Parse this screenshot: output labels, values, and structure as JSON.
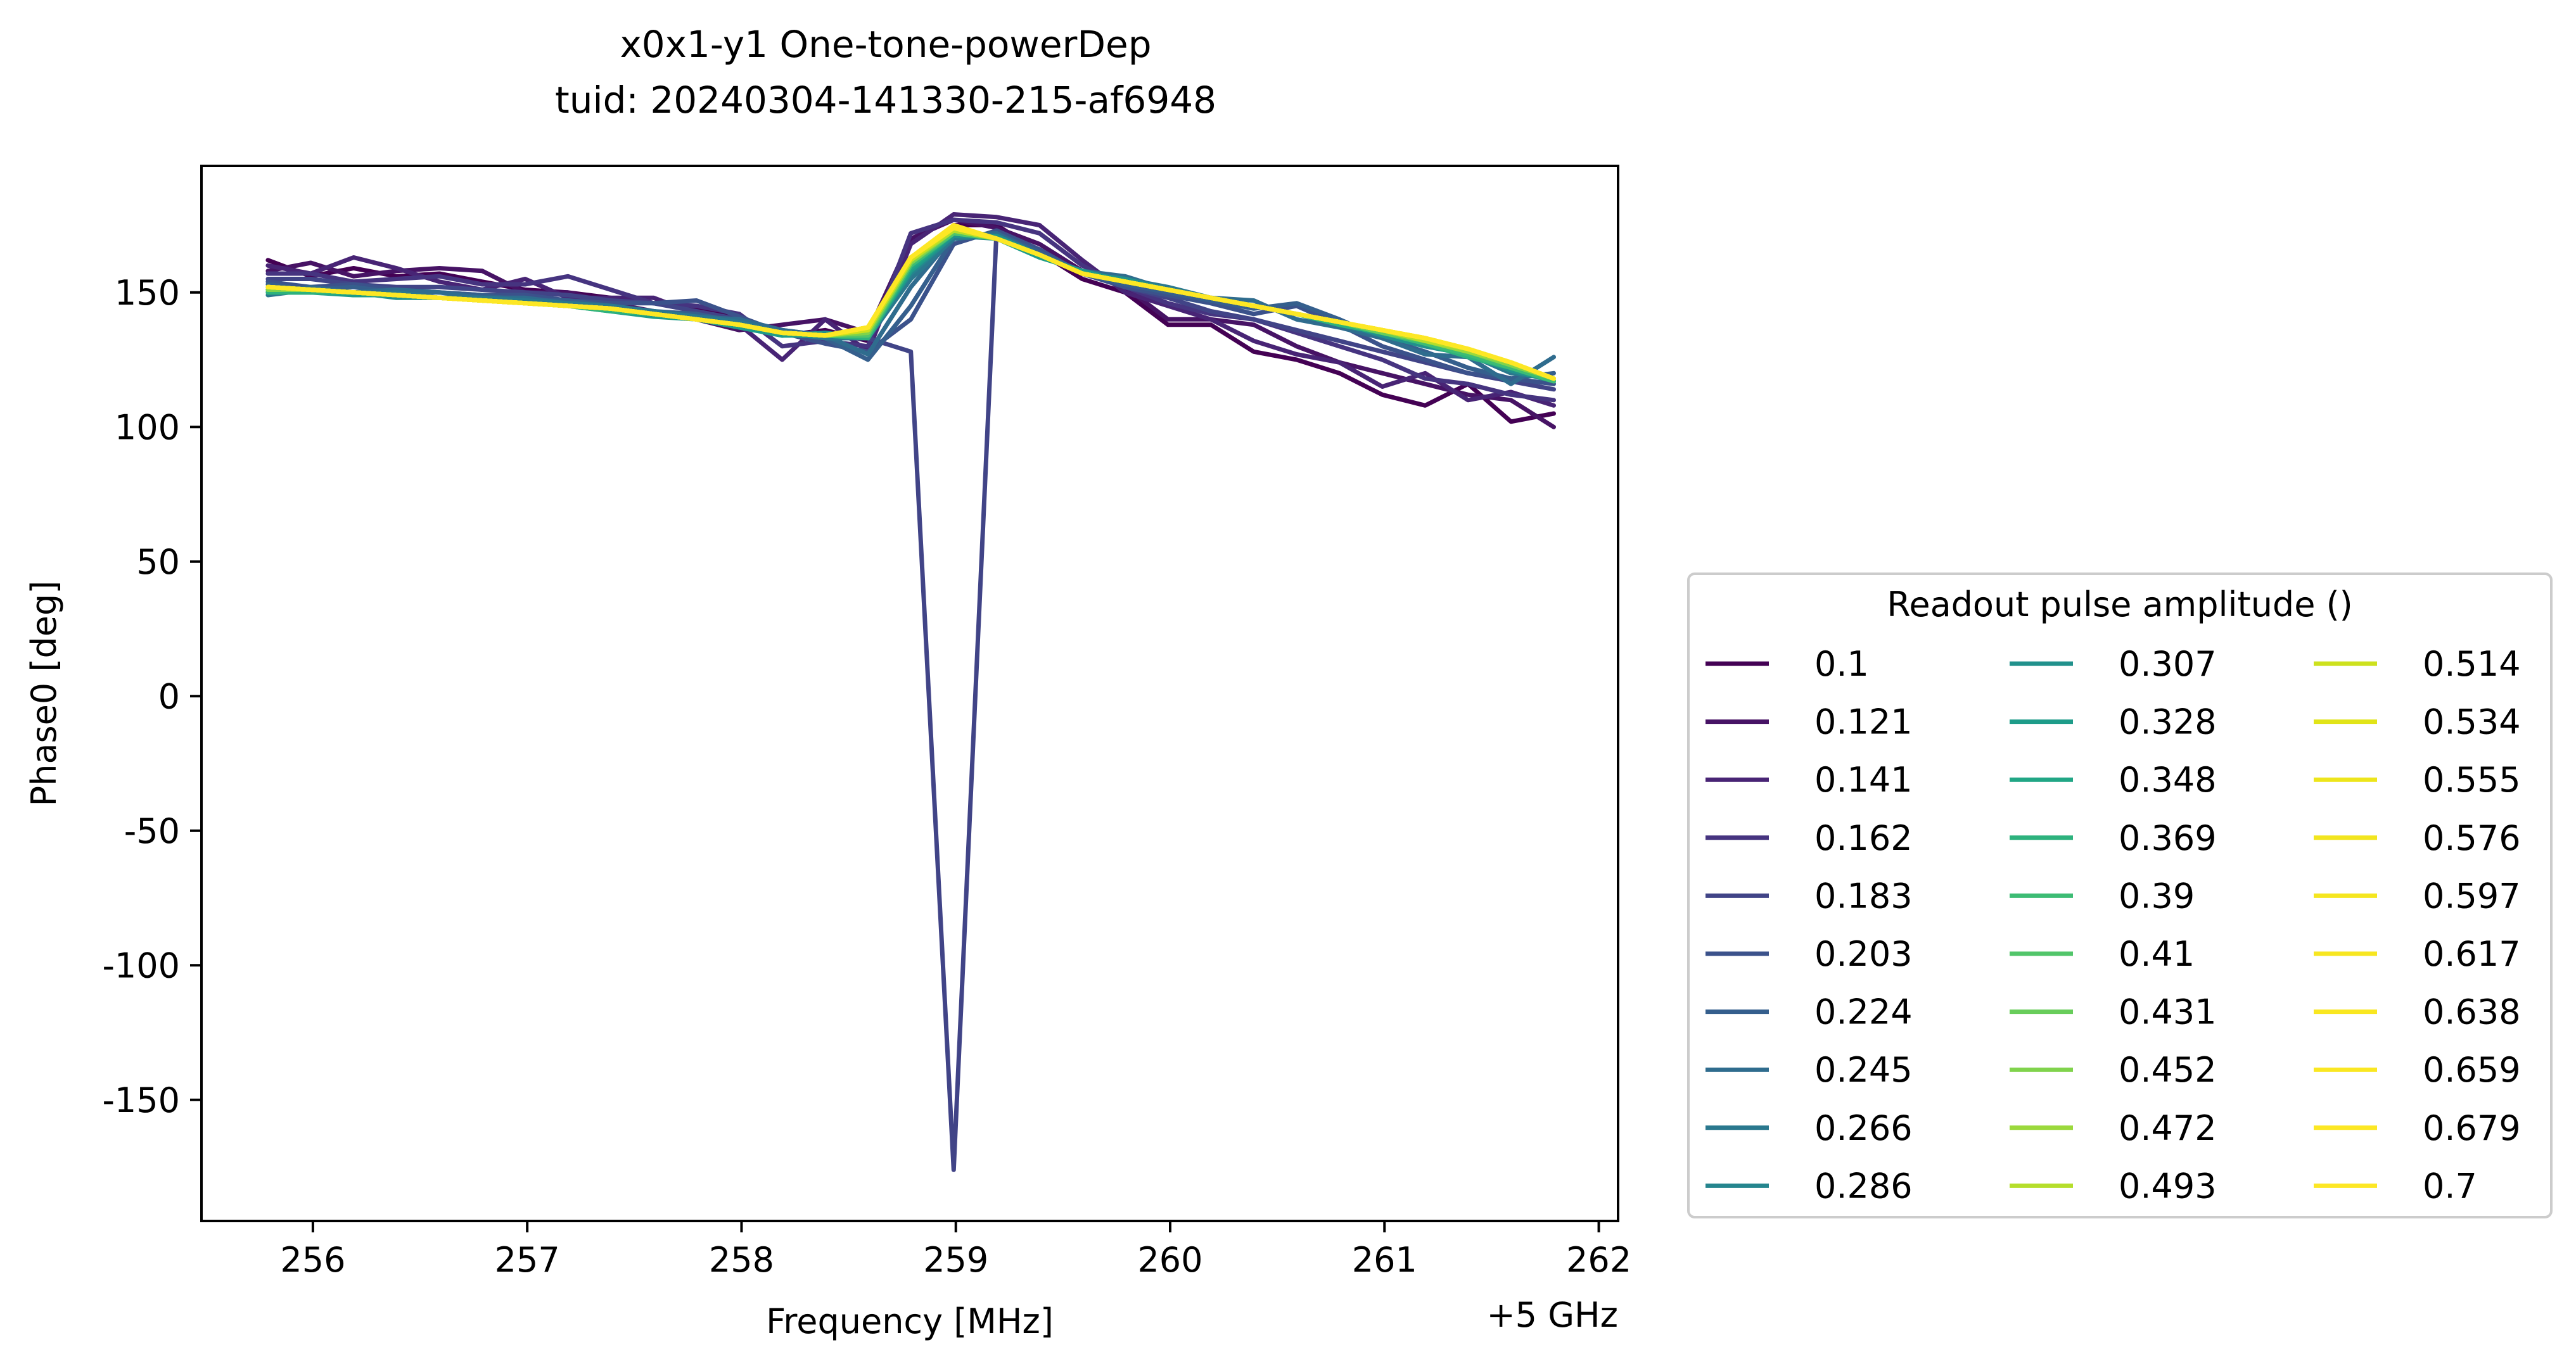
{
  "chart_data": {
    "type": "line",
    "title": "x0x1-y1 One-tone-powerDep",
    "subtitle": "tuid: 20240304-141330-215-af6948",
    "xlabel": "Frequency [MHz]",
    "x_offset_label": "+5 GHz",
    "ylabel": "Phase0 [deg]",
    "xlim": [
      255.48,
      262.09
    ],
    "ylim": [
      -195,
      197
    ],
    "xticks": [
      256,
      257,
      258,
      259,
      260,
      261,
      262
    ],
    "xtick_labels": [
      "256",
      "257",
      "258",
      "259",
      "260",
      "261",
      "262"
    ],
    "yticks": [
      150,
      100,
      50,
      0,
      -50,
      -100,
      -150
    ],
    "ytick_labels": [
      "150",
      "100",
      "50",
      "0",
      "-50",
      "-100",
      "-150"
    ],
    "grid": false,
    "legend": {
      "title": "Readout pulse amplitude ()",
      "placement": "outside-right",
      "columns": 3
    },
    "x": [
      255.79,
      255.99,
      256.19,
      256.39,
      256.59,
      256.79,
      256.99,
      257.19,
      257.39,
      257.59,
      257.79,
      257.99,
      258.19,
      258.39,
      258.59,
      258.79,
      258.99,
      259.19,
      259.39,
      259.59,
      259.79,
      259.99,
      260.19,
      260.39,
      260.59,
      260.79,
      260.99,
      261.19,
      261.39,
      261.59,
      261.79
    ],
    "series": [
      {
        "name": "0.1",
        "color": "#440154",
        "values": [
          162,
          156,
          159,
          156,
          157,
          154,
          151,
          150,
          148,
          146,
          144,
          140,
          134,
          136,
          132,
          160,
          175,
          175,
          165,
          155,
          150,
          138,
          138,
          128,
          125,
          120,
          112,
          108,
          116,
          102,
          105
        ]
      },
      {
        "name": "0.121",
        "color": "#471365",
        "values": [
          158,
          161,
          156,
          158,
          159,
          158,
          150,
          150,
          146,
          143,
          140,
          136,
          138,
          140,
          135,
          170,
          177,
          174,
          168,
          158,
          152,
          140,
          140,
          138,
          130,
          124,
          120,
          116,
          112,
          110,
          100
        ]
      },
      {
        "name": "0.141",
        "color": "#482475",
        "values": [
          160,
          157,
          163,
          159,
          154,
          151,
          155,
          148,
          148,
          148,
          142,
          138,
          125,
          140,
          128,
          168,
          179,
          178,
          175,
          162,
          150,
          145,
          140,
          132,
          127,
          124,
          115,
          120,
          110,
          113,
          108
        ]
      },
      {
        "name": "0.162",
        "color": "#463480",
        "values": [
          157,
          157,
          154,
          155,
          156,
          153,
          153,
          156,
          151,
          146,
          145,
          142,
          130,
          132,
          130,
          172,
          177,
          176,
          172,
          160,
          152,
          146,
          142,
          140,
          135,
          130,
          125,
          118,
          116,
          112,
          110
        ]
      },
      {
        "name": "0.183",
        "color": "#414487",
        "values": [
          155,
          155,
          153,
          152,
          152,
          151,
          150,
          149,
          147,
          146,
          143,
          140,
          136,
          134,
          133,
          128,
          -176,
          173,
          165,
          157,
          152,
          148,
          143,
          140,
          136,
          132,
          128,
          124,
          120,
          117,
          114
        ]
      },
      {
        "name": "0.203",
        "color": "#3b528b",
        "values": [
          154,
          152,
          153,
          151,
          150,
          149,
          149,
          147,
          146,
          146,
          147,
          141,
          135,
          131,
          128,
          140,
          168,
          173,
          166,
          157,
          152,
          149,
          146,
          142,
          145,
          138,
          130,
          125,
          120,
          118,
          116
        ]
      },
      {
        "name": "0.224",
        "color": "#355f8d",
        "values": [
          153,
          151,
          152,
          150,
          150,
          149,
          147,
          147,
          145,
          143,
          142,
          139,
          135,
          133,
          125,
          145,
          170,
          172,
          165,
          157,
          153,
          150,
          147,
          144,
          146,
          140,
          133,
          128,
          122,
          118,
          120
        ]
      },
      {
        "name": "0.245",
        "color": "#2f6c8e",
        "values": [
          150,
          152,
          150,
          151,
          150,
          148,
          148,
          146,
          144,
          143,
          141,
          140,
          136,
          134,
          127,
          152,
          171,
          172,
          164,
          158,
          156,
          151,
          148,
          147,
          140,
          137,
          133,
          127,
          126,
          116,
          126
        ]
      },
      {
        "name": "0.266",
        "color": "#2a788e",
        "values": [
          149,
          151,
          149,
          150,
          148,
          148,
          147,
          146,
          145,
          143,
          141,
          139,
          135,
          133,
          133,
          155,
          170,
          171,
          164,
          157,
          155,
          152,
          148,
          145,
          142,
          138,
          134,
          130,
          127,
          120,
          118
        ]
      },
      {
        "name": "0.286",
        "color": "#25858e",
        "values": [
          150,
          150,
          150,
          149,
          148,
          147,
          146,
          145,
          144,
          142,
          140,
          138,
          135,
          134,
          134,
          157,
          171,
          170,
          164,
          157,
          154,
          151,
          148,
          145,
          142,
          139,
          135,
          131,
          127,
          122,
          118
        ]
      },
      {
        "name": "0.307",
        "color": "#21918c",
        "values": [
          151,
          150,
          150,
          148,
          148,
          147,
          146,
          145,
          144,
          142,
          140,
          137,
          134,
          135,
          133,
          158,
          171,
          171,
          164,
          157,
          155,
          151,
          148,
          145,
          142,
          139,
          134,
          130,
          127,
          121,
          117
        ]
      },
      {
        "name": "0.328",
        "color": "#1e9c89",
        "values": [
          150,
          150,
          149,
          149,
          148,
          147,
          146,
          145,
          143,
          141,
          140,
          137,
          134,
          134,
          134,
          158,
          172,
          170,
          163,
          158,
          154,
          151,
          148,
          145,
          142,
          138,
          135,
          131,
          127,
          122,
          117
        ]
      },
      {
        "name": "0.348",
        "color": "#21a685",
        "values": [
          151,
          151,
          150,
          149,
          148,
          147,
          146,
          145,
          144,
          142,
          140,
          138,
          135,
          134,
          133,
          159,
          172,
          170,
          164,
          157,
          154,
          151,
          148,
          145,
          142,
          139,
          135,
          131,
          127,
          123,
          117
        ]
      },
      {
        "name": "0.369",
        "color": "#2db27d",
        "values": [
          150,
          150,
          150,
          149,
          148,
          147,
          146,
          145,
          143,
          142,
          140,
          138,
          135,
          134,
          133,
          160,
          172,
          170,
          164,
          157,
          154,
          151,
          148,
          145,
          142,
          138,
          135,
          131,
          126,
          122,
          117
        ]
      },
      {
        "name": "0.39",
        "color": "#3dbc74",
        "values": [
          151,
          151,
          150,
          149,
          148,
          147,
          146,
          145,
          144,
          142,
          140,
          138,
          135,
          134,
          134,
          160,
          172,
          170,
          164,
          157,
          154,
          151,
          148,
          145,
          142,
          139,
          135,
          131,
          127,
          122,
          117
        ]
      },
      {
        "name": "0.41",
        "color": "#51c56a",
        "values": [
          151,
          151,
          150,
          149,
          148,
          147,
          146,
          145,
          144,
          142,
          140,
          138,
          135,
          134,
          134,
          161,
          172,
          170,
          164,
          157,
          154,
          151,
          148,
          145,
          142,
          139,
          135,
          132,
          128,
          123,
          118
        ]
      },
      {
        "name": "0.431",
        "color": "#68cd5b",
        "values": [
          151,
          151,
          150,
          149,
          148,
          147,
          146,
          145,
          144,
          142,
          140,
          138,
          135,
          134,
          135,
          161,
          173,
          170,
          164,
          157,
          154,
          151,
          148,
          145,
          142,
          139,
          135,
          132,
          128,
          123,
          118
        ]
      },
      {
        "name": "0.452",
        "color": "#80d34c",
        "values": [
          151,
          151,
          150,
          149,
          148,
          147,
          146,
          145,
          144,
          142,
          140,
          138,
          135,
          134,
          135,
          161,
          173,
          170,
          164,
          157,
          154,
          151,
          148,
          145,
          142,
          139,
          136,
          132,
          128,
          123,
          118
        ]
      },
      {
        "name": "0.472",
        "color": "#9bd93c",
        "values": [
          152,
          151,
          150,
          149,
          148,
          147,
          146,
          145,
          144,
          142,
          140,
          138,
          135,
          134,
          136,
          162,
          173,
          170,
          164,
          157,
          154,
          151,
          148,
          145,
          142,
          139,
          136,
          132,
          128,
          124,
          118
        ]
      },
      {
        "name": "0.493",
        "color": "#b5de2b",
        "values": [
          152,
          151,
          150,
          149,
          148,
          147,
          146,
          145,
          144,
          142,
          140,
          138,
          135,
          134,
          136,
          162,
          173,
          170,
          164,
          157,
          154,
          151,
          148,
          145,
          142,
          139,
          136,
          132,
          129,
          124,
          118
        ]
      },
      {
        "name": "0.514",
        "color": "#cde11d",
        "values": [
          152,
          151,
          150,
          149,
          148,
          147,
          146,
          145,
          144,
          142,
          140,
          138,
          135,
          134,
          136,
          162,
          174,
          170,
          164,
          157,
          154,
          151,
          148,
          145,
          142,
          139,
          136,
          133,
          129,
          124,
          118
        ]
      },
      {
        "name": "0.534",
        "color": "#e1e418",
        "values": [
          152,
          151,
          150,
          149,
          148,
          147,
          146,
          145,
          144,
          142,
          140,
          138,
          135,
          134,
          137,
          163,
          174,
          170,
          164,
          157,
          154,
          151,
          148,
          145,
          142,
          139,
          136,
          133,
          129,
          124,
          118
        ]
      },
      {
        "name": "0.555",
        "color": "#ede51b",
        "values": [
          152,
          151,
          150,
          149,
          148,
          147,
          146,
          145,
          144,
          142,
          140,
          138,
          135,
          134,
          137,
          163,
          174,
          170,
          164,
          157,
          154,
          151,
          148,
          145,
          142,
          139,
          136,
          133,
          129,
          124,
          118
        ]
      },
      {
        "name": "0.576",
        "color": "#f2e51f",
        "values": [
          152,
          151,
          150,
          149,
          148,
          147,
          146,
          145,
          144,
          142,
          140,
          138,
          135,
          134,
          137,
          163,
          174,
          170,
          164,
          157,
          154,
          151,
          148,
          145,
          142,
          139,
          136,
          133,
          129,
          124,
          118
        ]
      },
      {
        "name": "0.597",
        "color": "#f5e61f",
        "values": [
          152,
          151,
          150,
          149,
          148,
          147,
          146,
          145,
          144,
          142,
          140,
          138,
          135,
          134,
          137,
          163,
          174,
          170,
          164,
          157,
          154,
          151,
          148,
          145,
          142,
          139,
          136,
          133,
          129,
          124,
          118
        ]
      },
      {
        "name": "0.617",
        "color": "#f7e620",
        "values": [
          152,
          151,
          150,
          149,
          148,
          147,
          146,
          145,
          144,
          142,
          140,
          138,
          135,
          134,
          137,
          163,
          174,
          170,
          164,
          157,
          154,
          151,
          148,
          145,
          142,
          139,
          136,
          133,
          129,
          124,
          118
        ]
      },
      {
        "name": "0.638",
        "color": "#f9e721",
        "values": [
          152,
          151,
          150,
          149,
          148,
          147,
          146,
          145,
          144,
          142,
          140,
          138,
          135,
          134,
          137,
          163,
          174,
          170,
          164,
          157,
          154,
          151,
          148,
          145,
          142,
          139,
          136,
          133,
          129,
          124,
          118
        ]
      },
      {
        "name": "0.659",
        "color": "#fae722",
        "values": [
          152,
          151,
          150,
          149,
          148,
          147,
          146,
          145,
          144,
          142,
          140,
          138,
          135,
          134,
          137,
          163,
          174,
          170,
          164,
          157,
          154,
          151,
          148,
          145,
          142,
          139,
          136,
          133,
          129,
          124,
          118
        ]
      },
      {
        "name": "0.679",
        "color": "#fce724",
        "values": [
          152,
          151,
          150,
          149,
          148,
          147,
          146,
          145,
          144,
          142,
          140,
          138,
          135,
          134,
          137,
          163,
          174,
          170,
          164,
          157,
          154,
          151,
          148,
          145,
          142,
          139,
          136,
          133,
          129,
          124,
          118
        ]
      },
      {
        "name": "0.7",
        "color": "#fde725",
        "values": [
          152,
          151,
          150,
          149,
          148,
          147,
          146,
          145,
          144,
          142,
          140,
          138,
          135,
          134,
          137,
          163,
          175,
          170,
          164,
          157,
          154,
          151,
          148,
          145,
          142,
          139,
          136,
          133,
          129,
          124,
          118
        ]
      }
    ]
  }
}
